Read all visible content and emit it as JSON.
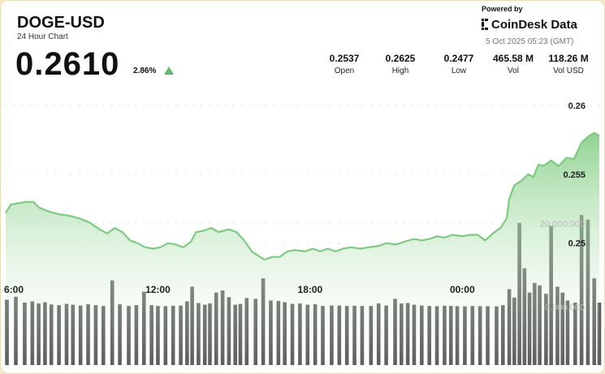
{
  "header": {
    "symbol": "DOGE-USD",
    "subtitle": "24 Hour Chart",
    "price": "0.2610",
    "change": "2.86%",
    "powered_by": "Powered by",
    "brand": "CoinDesk Data",
    "timestamp": "5 Oct 2025 05:23 (GMT)"
  },
  "stats": [
    {
      "value": "0.2537",
      "label": "Open"
    },
    {
      "value": "0.2625",
      "label": "High"
    },
    {
      "value": "0.2477",
      "label": "Low"
    },
    {
      "value": "465.58 M",
      "label": "Vol"
    },
    {
      "value": "118.26 M",
      "label": "Vol USD"
    }
  ],
  "colors": {
    "accent": "#5cbb6a",
    "line": "#7ccc7e",
    "volume_bar": "#5a5a5a",
    "background": "#f6e9c4"
  },
  "chart_data": {
    "type": "line",
    "title": "DOGE-USD",
    "x_tick_labels": [
      "6:00",
      "12:00",
      "18:00",
      "00:00"
    ],
    "x_tick_hours": [
      6,
      12,
      18,
      24
    ],
    "x_range_hours": [
      6,
      29.4
    ],
    "price_ticks": [
      0.25,
      0.255,
      0.26
    ],
    "price_ylim": [
      0.2405,
      0.263
    ],
    "volume_ticks": [
      "0.000.000",
      "20.000.000"
    ],
    "volume_tick_values": [
      0,
      20000000
    ],
    "volume_ylim": [
      -13800000,
      22000000
    ],
    "grid": true,
    "series": [
      {
        "name": "Price",
        "points": [
          [
            6.0,
            0.2522
          ],
          [
            6.2,
            0.2528
          ],
          [
            6.5,
            0.2529
          ],
          [
            6.8,
            0.253
          ],
          [
            7.1,
            0.253
          ],
          [
            7.3,
            0.2526
          ],
          [
            7.7,
            0.2523
          ],
          [
            8.1,
            0.2521
          ],
          [
            8.5,
            0.252
          ],
          [
            8.9,
            0.2518
          ],
          [
            9.3,
            0.2515
          ],
          [
            9.7,
            0.251
          ],
          [
            10.0,
            0.2507
          ],
          [
            10.3,
            0.2511
          ],
          [
            10.6,
            0.2508
          ],
          [
            10.9,
            0.2502
          ],
          [
            11.2,
            0.25
          ],
          [
            11.5,
            0.2497
          ],
          [
            11.8,
            0.2496
          ],
          [
            12.1,
            0.2497
          ],
          [
            12.4,
            0.25
          ],
          [
            12.7,
            0.2499
          ],
          [
            13.0,
            0.2497
          ],
          [
            13.3,
            0.2501
          ],
          [
            13.5,
            0.2508
          ],
          [
            13.8,
            0.2509
          ],
          [
            14.1,
            0.2511
          ],
          [
            14.4,
            0.2508
          ],
          [
            14.8,
            0.251
          ],
          [
            15.1,
            0.2508
          ],
          [
            15.4,
            0.2502
          ],
          [
            15.7,
            0.2494
          ],
          [
            15.95,
            0.2491
          ],
          [
            16.2,
            0.2488
          ],
          [
            16.5,
            0.249
          ],
          [
            16.8,
            0.249
          ],
          [
            17.1,
            0.2494
          ],
          [
            17.4,
            0.2495
          ],
          [
            17.8,
            0.2494
          ],
          [
            18.1,
            0.2496
          ],
          [
            18.4,
            0.2494
          ],
          [
            18.7,
            0.2496
          ],
          [
            19.0,
            0.2494
          ],
          [
            19.3,
            0.2496
          ],
          [
            19.6,
            0.2497
          ],
          [
            20.0,
            0.2496
          ],
          [
            20.3,
            0.2497
          ],
          [
            20.7,
            0.2498
          ],
          [
            21.0,
            0.25
          ],
          [
            21.4,
            0.2499
          ],
          [
            21.7,
            0.2501
          ],
          [
            22.1,
            0.2503
          ],
          [
            22.4,
            0.2502
          ],
          [
            22.7,
            0.2503
          ],
          [
            23.0,
            0.2505
          ],
          [
            23.3,
            0.2504
          ],
          [
            23.6,
            0.2506
          ],
          [
            24.0,
            0.2505
          ],
          [
            24.3,
            0.2506
          ],
          [
            24.6,
            0.2506
          ],
          [
            24.9,
            0.2502
          ],
          [
            25.2,
            0.2507
          ],
          [
            25.5,
            0.2511
          ],
          [
            25.75,
            0.2518
          ],
          [
            25.85,
            0.2532
          ],
          [
            26.05,
            0.2542
          ],
          [
            26.3,
            0.2545
          ],
          [
            26.6,
            0.255
          ],
          [
            26.8,
            0.2548
          ],
          [
            27.0,
            0.2557
          ],
          [
            27.2,
            0.2556
          ],
          [
            27.5,
            0.256
          ],
          [
            27.8,
            0.2556
          ],
          [
            28.1,
            0.2562
          ],
          [
            28.4,
            0.2561
          ],
          [
            28.7,
            0.2573
          ],
          [
            29.0,
            0.2578
          ],
          [
            29.2,
            0.258
          ],
          [
            29.4,
            0.2578
          ]
        ]
      },
      {
        "name": "Volume",
        "points": [
          [
            6.05,
            1800000
          ],
          [
            6.4,
            2500000
          ],
          [
            6.75,
            1100000
          ],
          [
            7.05,
            1400000
          ],
          [
            7.3,
            900000
          ],
          [
            7.55,
            1200000
          ],
          [
            7.8,
            650000
          ],
          [
            8.1,
            500000
          ],
          [
            8.4,
            800000
          ],
          [
            8.65,
            600000
          ],
          [
            8.95,
            400000
          ],
          [
            9.25,
            700000
          ],
          [
            9.55,
            500000
          ],
          [
            9.85,
            300000
          ],
          [
            10.2,
            6400000
          ],
          [
            10.5,
            700000
          ],
          [
            10.85,
            300000
          ],
          [
            11.15,
            500000
          ],
          [
            11.45,
            3700000
          ],
          [
            11.75,
            500000
          ],
          [
            12.0,
            300000
          ],
          [
            12.3,
            250000
          ],
          [
            12.6,
            350000
          ],
          [
            12.9,
            400000
          ],
          [
            13.15,
            1400000
          ],
          [
            13.35,
            4900000
          ],
          [
            13.6,
            1000000
          ],
          [
            13.85,
            600000
          ],
          [
            14.05,
            900000
          ],
          [
            14.3,
            3500000
          ],
          [
            14.55,
            4000000
          ],
          [
            14.8,
            2400000
          ],
          [
            15.05,
            600000
          ],
          [
            15.25,
            800000
          ],
          [
            15.5,
            2200000
          ],
          [
            15.85,
            2000000
          ],
          [
            16.15,
            6900000
          ],
          [
            16.45,
            1600000
          ],
          [
            16.75,
            1500000
          ],
          [
            17.0,
            1200000
          ],
          [
            17.3,
            800000
          ],
          [
            17.6,
            900000
          ],
          [
            17.9,
            600000
          ],
          [
            18.2,
            700000
          ],
          [
            18.5,
            300000
          ],
          [
            18.85,
            400000
          ],
          [
            19.15,
            400000
          ],
          [
            19.45,
            300000
          ],
          [
            19.75,
            350000
          ],
          [
            20.05,
            300000
          ],
          [
            20.4,
            300000
          ],
          [
            20.7,
            900000
          ],
          [
            21.0,
            400000
          ],
          [
            21.35,
            2000000
          ],
          [
            21.6,
            900000
          ],
          [
            21.85,
            1000000
          ],
          [
            22.1,
            600000
          ],
          [
            22.4,
            400000
          ],
          [
            22.7,
            300000
          ],
          [
            23.0,
            250000
          ],
          [
            23.3,
            350000
          ],
          [
            23.55,
            300000
          ],
          [
            23.8,
            250000
          ],
          [
            24.1,
            200000
          ],
          [
            24.4,
            300000
          ],
          [
            24.7,
            250000
          ],
          [
            25.0,
            250000
          ],
          [
            25.35,
            200000
          ],
          [
            25.6,
            500000
          ],
          [
            25.85,
            4300000
          ],
          [
            26.05,
            2300000
          ],
          [
            26.25,
            20100000
          ],
          [
            26.45,
            9300000
          ],
          [
            26.65,
            3500000
          ],
          [
            26.85,
            5800000
          ],
          [
            27.05,
            5200000
          ],
          [
            27.3,
            3200000
          ],
          [
            27.5,
            19400000
          ],
          [
            27.75,
            4900000
          ],
          [
            27.95,
            3500000
          ],
          [
            28.15,
            1600000
          ],
          [
            28.45,
            1100000
          ],
          [
            28.7,
            22000000
          ],
          [
            28.95,
            20900000
          ],
          [
            29.2,
            6900000
          ],
          [
            29.4,
            1100000
          ]
        ]
      }
    ]
  }
}
